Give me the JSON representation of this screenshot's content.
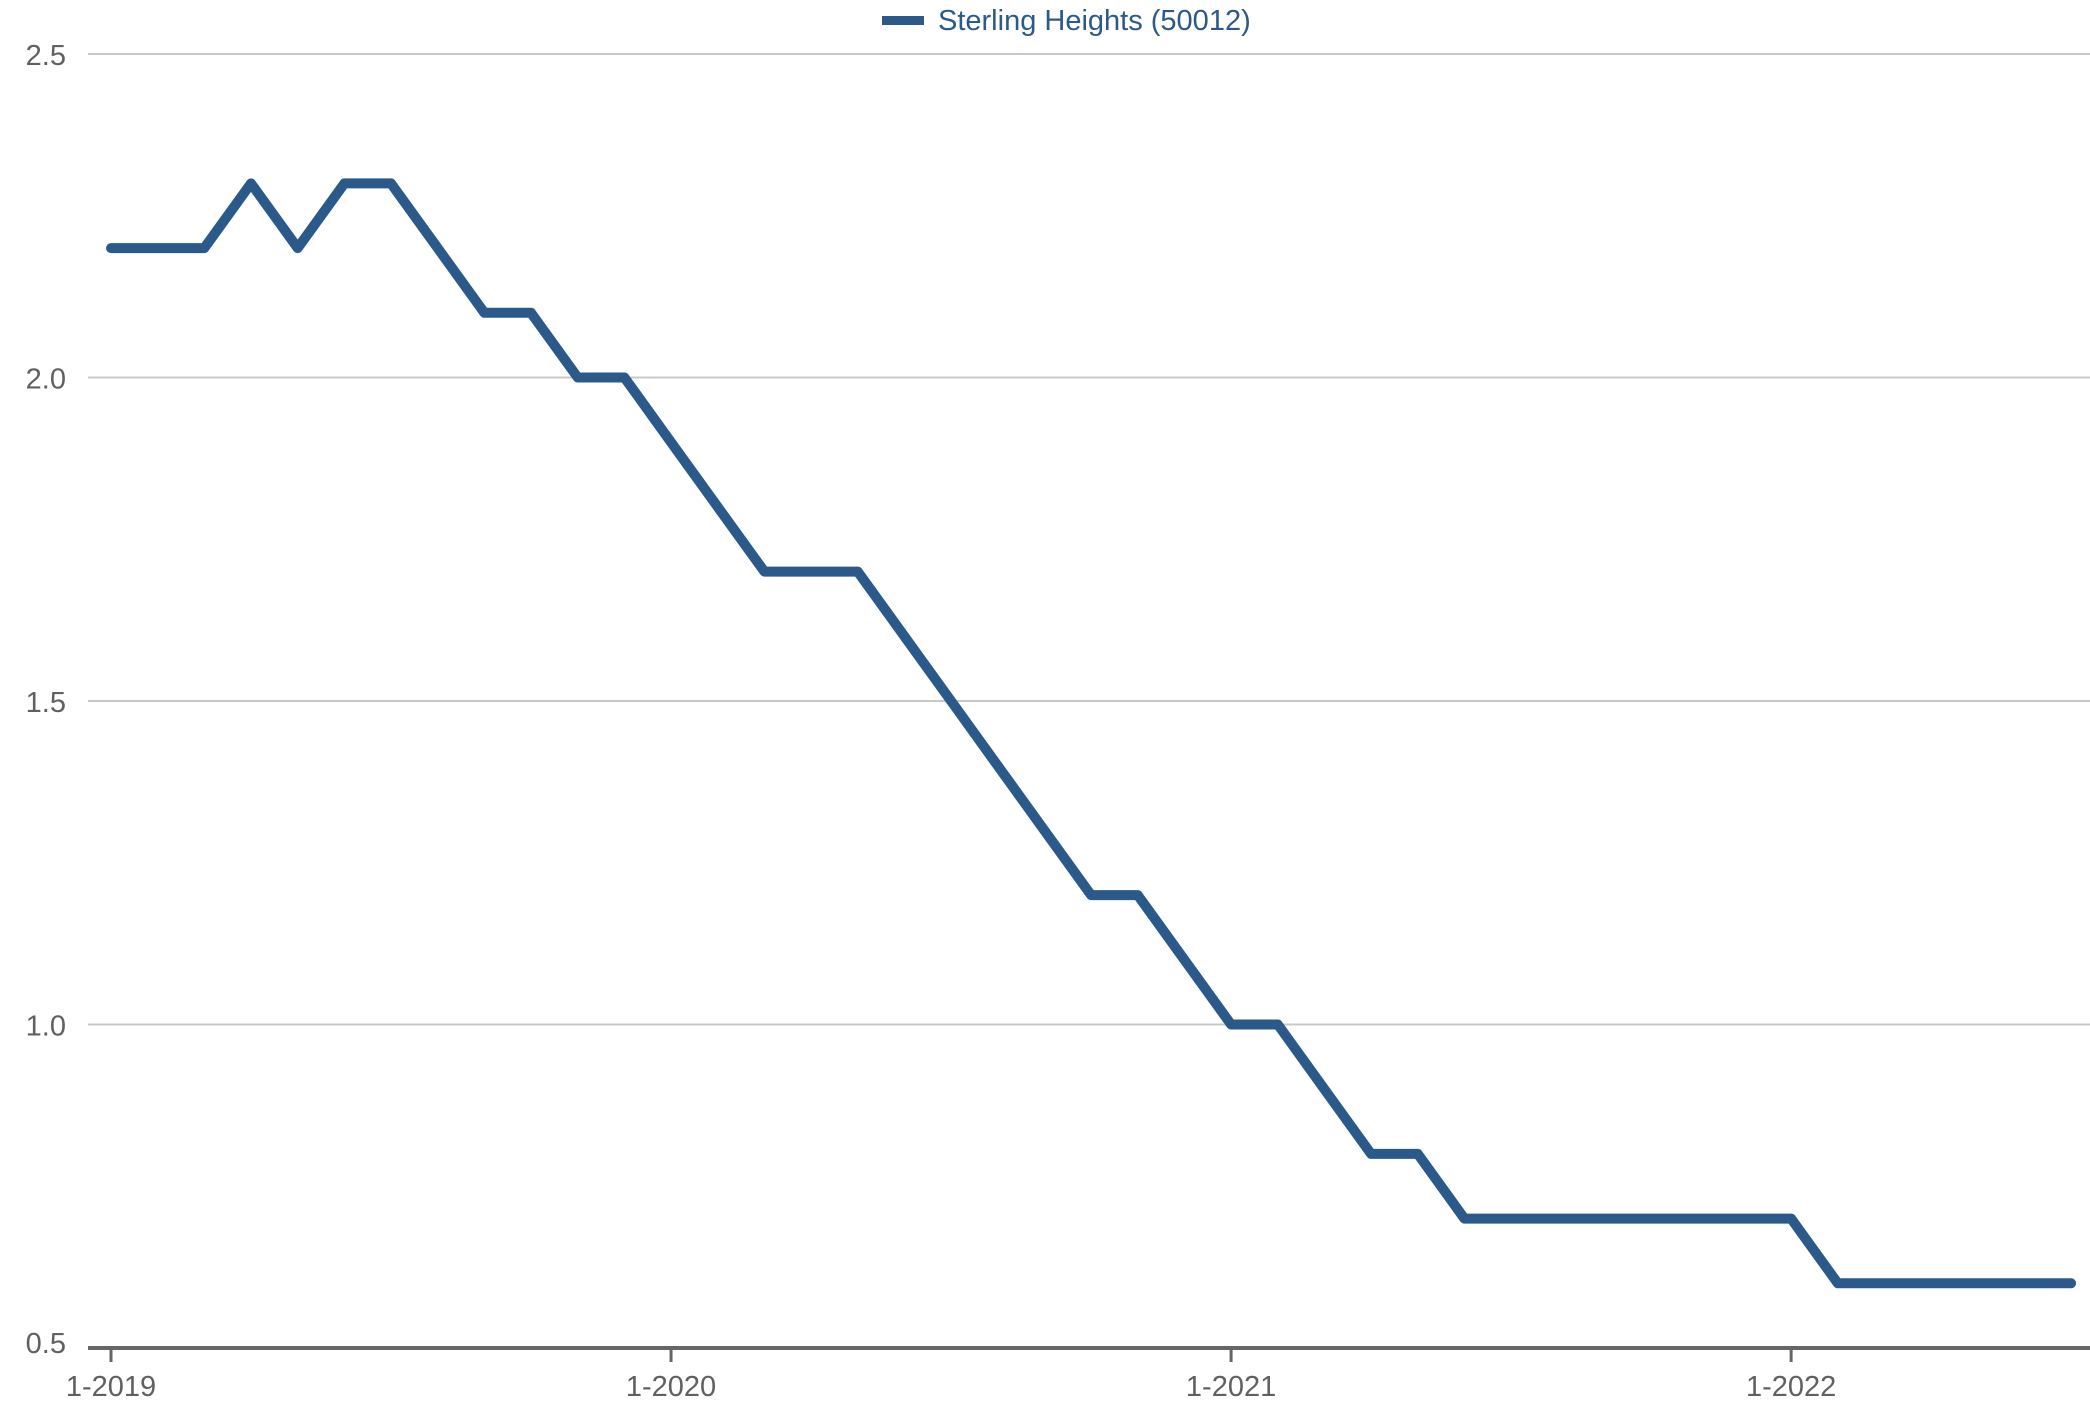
{
  "chart_data": {
    "type": "line",
    "title": "",
    "xlabel": "",
    "ylabel": "",
    "legend_position": "top-center",
    "grid": true,
    "ylim": [
      0.5,
      2.5
    ],
    "y_ticks": [
      "2.5",
      "2.0",
      "1.5",
      "1.0",
      "0.5"
    ],
    "x_ticks": [
      "1-2019",
      "1-2020",
      "1-2021",
      "1-2022"
    ],
    "x_start": "1-2019",
    "x_range_months": [
      0,
      42.5
    ],
    "series": [
      {
        "name": "Sterling Heights (50012)",
        "color": "#2b5a8a",
        "x": [
          "1-2019",
          "2-2019",
          "3-2019",
          "4-2019",
          "5-2019",
          "6-2019",
          "7-2019",
          "8-2019",
          "9-2019",
          "10-2019",
          "11-2019",
          "12-2019",
          "1-2020",
          "2-2020",
          "3-2020",
          "4-2020",
          "5-2020",
          "6-2020",
          "7-2020",
          "8-2020",
          "9-2020",
          "10-2020",
          "11-2020",
          "12-2020",
          "1-2021",
          "2-2021",
          "3-2021",
          "4-2021",
          "5-2021",
          "6-2021",
          "7-2021",
          "8-2021",
          "9-2021",
          "10-2021",
          "11-2021",
          "12-2021",
          "1-2022",
          "2-2022",
          "3-2022",
          "4-2022",
          "5-2022",
          "6-2022",
          "7-2022"
        ],
        "values": [
          2.2,
          2.2,
          2.2,
          2.3,
          2.2,
          2.3,
          2.3,
          2.2,
          2.1,
          2.1,
          2.0,
          2.0,
          1.9,
          1.8,
          1.7,
          1.7,
          1.7,
          1.6,
          1.5,
          1.4,
          1.3,
          1.2,
          1.2,
          1.1,
          1.0,
          1.0,
          0.9,
          0.8,
          0.8,
          0.7,
          0.7,
          0.7,
          0.7,
          0.7,
          0.7,
          0.7,
          0.7,
          0.6,
          0.6,
          0.6,
          0.6,
          0.6,
          0.6
        ]
      }
    ]
  }
}
